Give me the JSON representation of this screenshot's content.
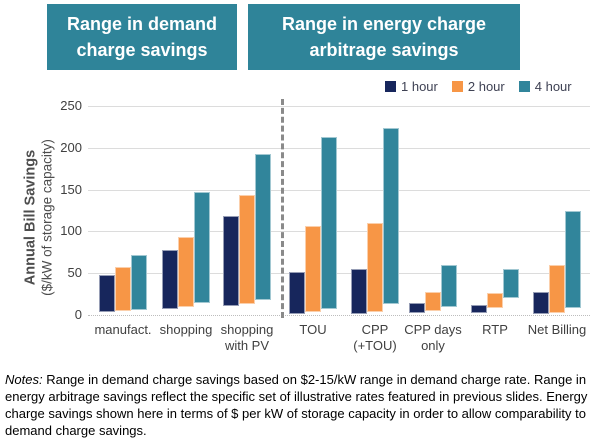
{
  "chart_data": {
    "type": "bar",
    "subtype": "floating-range-bars",
    "bars_represent": "min-max range of annual bill savings per kW of storage",
    "titles": {
      "left": "Range in demand charge savings",
      "right": "Range in energy charge arbitrage savings"
    },
    "ylabel_line1": "Annual Bill Savings",
    "ylabel_line2": "($/kW of storage capacity)",
    "ylim": [
      0,
      250
    ],
    "yticks": [
      0,
      50,
      100,
      150,
      200,
      250
    ],
    "grid": true,
    "legend_position": "top-right",
    "categories": [
      {
        "lines": [
          "manufact."
        ]
      },
      {
        "lines": [
          "shopping"
        ]
      },
      {
        "lines": [
          "shopping",
          "with PV"
        ]
      },
      {
        "lines": [
          "TOU"
        ]
      },
      {
        "lines": [
          "CPP",
          "(+TOU)"
        ]
      },
      {
        "lines": [
          "CPP days",
          "only"
        ]
      },
      {
        "lines": [
          "RTP"
        ]
      },
      {
        "lines": [
          "Net Billing"
        ]
      }
    ],
    "divider_after_index": 2,
    "series": [
      {
        "name": "1 hour",
        "color": "#17265c",
        "ranges": [
          [
            4,
            48
          ],
          [
            7,
            78
          ],
          [
            11,
            119
          ],
          [
            1,
            52
          ],
          [
            1,
            55
          ],
          [
            2,
            14
          ],
          [
            2,
            12
          ],
          [
            1,
            28
          ]
        ]
      },
      {
        "name": "2 hour",
        "color": "#f79646",
        "ranges": [
          [
            5,
            57
          ],
          [
            10,
            93
          ],
          [
            13,
            143
          ],
          [
            3,
            106
          ],
          [
            4,
            110
          ],
          [
            5,
            28
          ],
          [
            8,
            26
          ],
          [
            2,
            60
          ]
        ]
      },
      {
        "name": "4 hour",
        "color": "#31859b",
        "ranges": [
          [
            6,
            72
          ],
          [
            14,
            147
          ],
          [
            18,
            193
          ],
          [
            7,
            213
          ],
          [
            13,
            224
          ],
          [
            9,
            60
          ],
          [
            20,
            55
          ],
          [
            8,
            124
          ]
        ]
      }
    ]
  },
  "notes": {
    "label": "Notes:",
    "body": "Range in demand charge savings based on $2-15/kW range in demand charge rate. Range in energy arbitrage savings reflect the specific set of illustrative rates featured in previous slides. Energy charge savings shown here in terms of $ per kW of storage capacity in order to allow comparability to demand charge savings."
  }
}
